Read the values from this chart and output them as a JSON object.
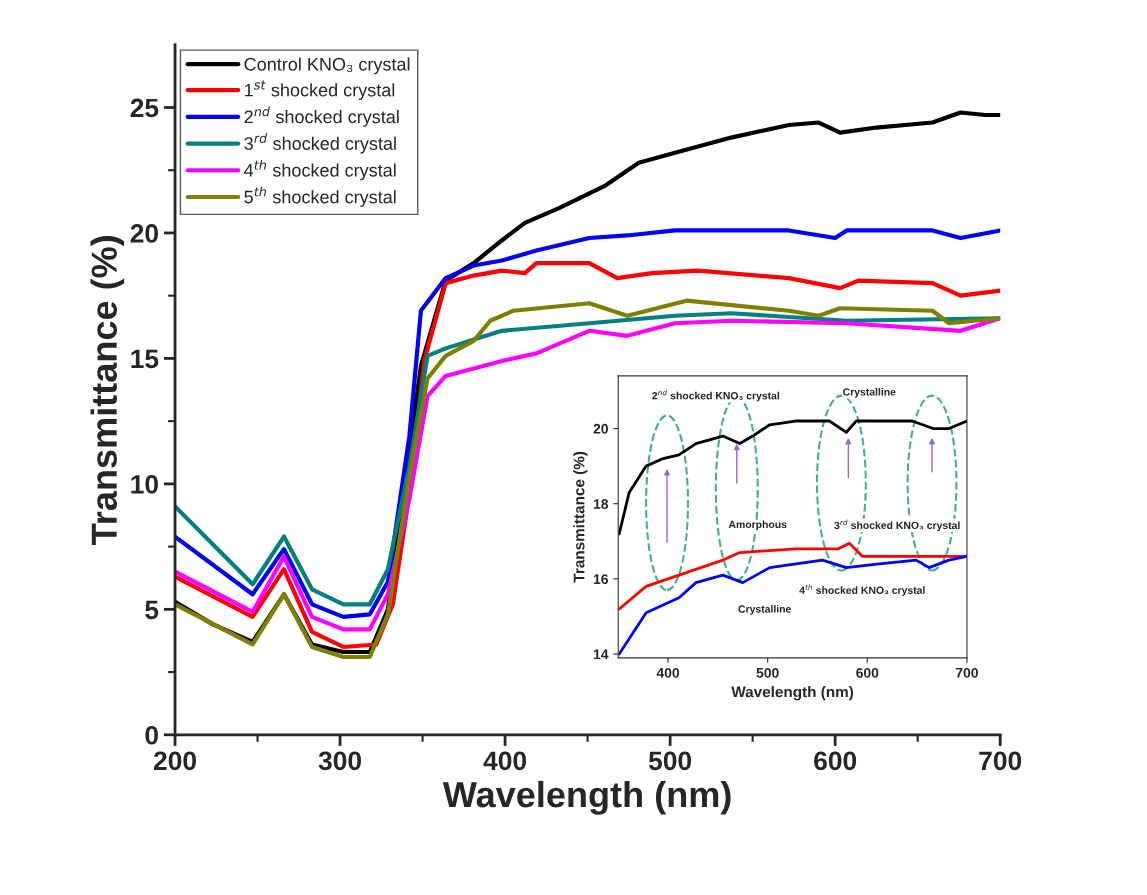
{
  "chart_data": [
    {
      "type": "line",
      "xlabel": "Wavelength (nm)",
      "ylabel": "Transmittance (%)",
      "xlim": [
        200,
        700
      ],
      "ylim": [
        0,
        27.5
      ],
      "xticks": [
        200,
        300,
        400,
        500,
        600,
        700
      ],
      "yticks": [
        0,
        5,
        10,
        15,
        20,
        25
      ],
      "legend": "top left",
      "grid": false,
      "marker": "none",
      "line_style": "solid",
      "series": [
        {
          "name": "Control KNO₃ crystal",
          "color": "#000000",
          "x": [
            200,
            223,
            247,
            266,
            283,
            302,
            318,
            329,
            349,
            364,
            381,
            398,
            412,
            433,
            461,
            481,
            503,
            537,
            572,
            590,
            603,
            625,
            659,
            676,
            691,
            700
          ],
          "values": [
            5.3,
            4.4,
            3.7,
            5.6,
            3.6,
            3.3,
            3.3,
            5.0,
            14.7,
            18.1,
            18.8,
            19.7,
            20.4,
            21.0,
            21.9,
            22.8,
            23.2,
            23.8,
            24.3,
            24.4,
            24.0,
            24.2,
            24.4,
            24.8,
            24.7,
            24.7
          ]
        },
        {
          "name": "1$^{st}$ shocked crystal",
          "color": "#ff0000",
          "x": [
            200,
            247,
            266,
            283,
            302,
            322,
            332,
            342,
            351,
            364,
            381,
            398,
            412,
            419,
            451,
            468,
            489,
            517,
            572,
            603,
            614,
            659,
            676,
            700
          ],
          "values": [
            6.3,
            4.7,
            6.6,
            4.1,
            3.5,
            3.6,
            5.2,
            9.6,
            14.9,
            18.0,
            18.3,
            18.5,
            18.4,
            18.8,
            18.8,
            18.2,
            18.4,
            18.5,
            18.2,
            17.8,
            18.1,
            18.0,
            17.5,
            17.7
          ]
        },
        {
          "name": "2$^{nd}$ shocked crystal",
          "color": "#0000ff",
          "x": [
            200,
            247,
            266,
            283,
            302,
            318,
            329,
            342,
            349,
            364,
            381,
            398,
            419,
            451,
            474,
            503,
            537,
            572,
            600,
            607,
            659,
            676,
            700
          ],
          "values": [
            7.9,
            5.6,
            7.4,
            5.2,
            4.7,
            4.8,
            6.1,
            11.9,
            16.9,
            18.2,
            18.7,
            18.9,
            19.3,
            19.8,
            19.9,
            20.1,
            20.1,
            20.1,
            19.8,
            20.1,
            20.1,
            19.8,
            20.1
          ]
        },
        {
          "name": "3$^{rd}$ shocked crystal",
          "color": "#008080",
          "x": [
            200,
            247,
            266,
            283,
            302,
            318,
            329,
            342,
            353,
            364,
            398,
            451,
            503,
            537,
            607,
            700
          ],
          "values": [
            9.1,
            6.0,
            7.9,
            5.8,
            5.2,
            5.2,
            6.6,
            10.7,
            15.1,
            15.4,
            16.1,
            16.4,
            16.7,
            16.8,
            16.5,
            16.6
          ]
        },
        {
          "name": "4$^{th}$ shocked crystal",
          "color": "#ff00ff",
          "x": [
            200,
            247,
            266,
            283,
            302,
            318,
            329,
            342,
            353,
            364,
            398,
            419,
            451,
            474,
            503,
            537,
            607,
            676,
            700
          ],
          "values": [
            6.5,
            4.9,
            7.1,
            4.7,
            4.2,
            4.2,
            5.6,
            9.4,
            13.5,
            14.3,
            14.9,
            15.2,
            16.1,
            15.9,
            16.4,
            16.5,
            16.4,
            16.1,
            16.6
          ]
        },
        {
          "name": "5$^{th}$ shocked crystal",
          "color": "#808000",
          "x": [
            200,
            247,
            266,
            283,
            302,
            318,
            329,
            342,
            353,
            364,
            381,
            391,
            405,
            451,
            474,
            510,
            572,
            590,
            603,
            659,
            669,
            700
          ],
          "values": [
            5.2,
            3.6,
            5.6,
            3.5,
            3.1,
            3.1,
            4.8,
            10.3,
            14.2,
            15.1,
            15.7,
            16.5,
            16.9,
            17.2,
            16.7,
            17.3,
            16.9,
            16.7,
            17.0,
            16.9,
            16.4,
            16.6
          ]
        }
      ]
    },
    {
      "type": "line",
      "xlabel": "Wavelength (nm)",
      "ylabel": "Transmittance (%)",
      "xlim": [
        350,
        700
      ],
      "ylim": [
        13.9,
        21.4
      ],
      "xticks": [
        400,
        500,
        600,
        700
      ],
      "yticks": [
        14,
        16,
        18,
        20
      ],
      "grid": false,
      "legend": false,
      "marker": "none",
      "line_style": "solid",
      "series": [
        {
          "color": "#000000",
          "x": [
            351,
            361,
            378,
            395,
            411,
            428,
            455,
            472,
            485,
            502,
            528,
            562,
            579,
            589,
            645,
            666,
            682,
            700
          ],
          "values": [
            17.2,
            18.3,
            19.0,
            19.2,
            19.3,
            19.6,
            19.8,
            19.6,
            19.8,
            20.1,
            20.2,
            20.2,
            19.9,
            20.2,
            20.2,
            20.0,
            20.0,
            20.2
          ]
        },
        {
          "color": "#ff0000",
          "x": [
            351,
            378,
            411,
            455,
            472,
            528,
            571,
            582,
            595,
            662,
            700
          ],
          "values": [
            15.2,
            15.8,
            16.1,
            16.5,
            16.7,
            16.8,
            16.8,
            16.95,
            16.6,
            16.6,
            16.6
          ]
        },
        {
          "color": "#0000ff",
          "x": [
            351,
            378,
            411,
            428,
            455,
            475,
            502,
            555,
            579,
            612,
            649,
            662,
            682,
            700
          ],
          "values": [
            14.0,
            15.1,
            15.5,
            15.9,
            16.1,
            15.9,
            16.3,
            16.5,
            16.3,
            16.4,
            16.5,
            16.3,
            16.5,
            16.6
          ]
        }
      ],
      "annotations": [
        "2$^{nd}$ shocked KNO₃ crystal",
        "Crystalline",
        "Amorphous",
        "3$^{rd}$ shocked KNO₃ crystal",
        "4$^{th}$ shocked KNO₃ crystal",
        "Crystalline"
      ]
    }
  ]
}
